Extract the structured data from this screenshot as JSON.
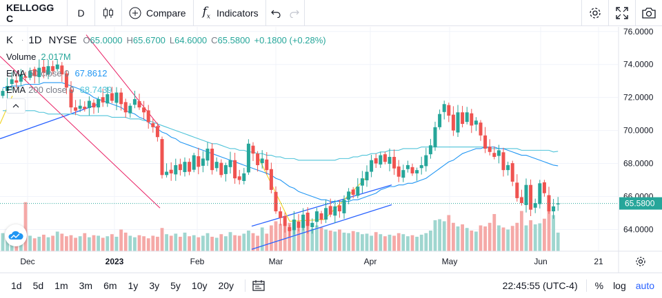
{
  "toolbar": {
    "symbol": "KELLOGG C",
    "interval": "D",
    "compare_label": "Compare",
    "indicators_label": "Indicators"
  },
  "legend": {
    "symbol": "K",
    "interval": "1D",
    "exchange": "NYSE",
    "open_label": "O",
    "open": "65.0000",
    "high_label": "H",
    "high": "65.6700",
    "low_label": "L",
    "low": "64.6000",
    "close_label": "C",
    "close": "65.5800",
    "change": "+0.1800 (+0.28%)",
    "volume_label": "Volume",
    "volume": "2.017M",
    "ema50_label": "EMA",
    "ema50_params": "50 close 0",
    "ema50_value": "67.8612",
    "ema200_label": "EMA",
    "ema200_params": "200 close 0",
    "ema200_value": "68.7439"
  },
  "colors": {
    "up": "#26a69a",
    "down": "#ef5350",
    "vol_up": "#9fd6cf",
    "vol_down": "#f5a9a7",
    "ema50": "#2196f3",
    "ema200": "#4fc3d9",
    "trend": "#2962ff",
    "channel": "#e91e63",
    "zigzag": "#f2d630"
  },
  "bottom": {
    "ranges": [
      "1d",
      "5d",
      "1m",
      "3m",
      "6m",
      "1y",
      "3y",
      "5y",
      "10y",
      "20y"
    ],
    "time": "22:45:55 (UTC-4)",
    "percent_label": "%",
    "log_label": "log",
    "auto_label": "auto"
  },
  "chart_data": {
    "type": "candlestick",
    "x_tick_labels": [
      "Dec",
      "2023",
      "Feb",
      "Mar",
      "Apr",
      "May",
      "Jun",
      "21"
    ],
    "y_tick_labels": [
      "76.0000",
      "74.0000",
      "72.0000",
      "70.0000",
      "68.0000",
      "66.0000",
      "64.0000"
    ],
    "ylim": [
      62.6,
      76.2
    ],
    "last_price_label": "65.5800",
    "last_price": 65.58,
    "closes": [
      72.4,
      72.7,
      73.1,
      72.9,
      73.4,
      73.2,
      73.6,
      73.3,
      73.8,
      73.5,
      73.9,
      73.6,
      74.0,
      73.4,
      72.6,
      71.4,
      71.2,
      71.5,
      71.3,
      71.8,
      71.4,
      71.9,
      71.7,
      72.2,
      71.8,
      72.3,
      71.6,
      71.1,
      71.5,
      71.9,
      71.4,
      71.1,
      70.5,
      70.2,
      69.6,
      67.3,
      67.5,
      67.4,
      67.9,
      67.6,
      68.1,
      67.5,
      68.5,
      67.8,
      68.3,
      68.9,
      67.6,
      68.1,
      67.3,
      67.9,
      68.2,
      67.1,
      67.0,
      67.4,
      69.2,
      68.6,
      67.9,
      68.3,
      67.6,
      66.4,
      65.1,
      64.7,
      64.2,
      63.9,
      64.6,
      64.1,
      64.9,
      64.2,
      64.4,
      65.1,
      64.6,
      65.3,
      64.9,
      65.4,
      65.1,
      65.8,
      66.3,
      66.1,
      66.6,
      67.1,
      67.5,
      68.2,
      68.0,
      68.5,
      68.1,
      68.4,
      67.7,
      67.2,
      67.6,
      67.9,
      67.4,
      67.6,
      67.9,
      68.5,
      69.1,
      70.2,
      71.0,
      71.6,
      70.9,
      70.0,
      71.1,
      70.4,
      71.1,
      70.3,
      70.6,
      69.7,
      68.9,
      68.7,
      68.4,
      68.8,
      67.6,
      67.9,
      66.9,
      65.9,
      65.6,
      66.7,
      65.2,
      65.6,
      66.8,
      66.2,
      65.1,
      65.4,
      65.58
    ],
    "ema50": [
      72.6,
      72.6,
      72.7,
      72.7,
      72.7,
      72.8,
      72.8,
      72.8,
      72.8,
      72.9,
      72.9,
      72.9,
      72.9,
      72.9,
      72.8,
      72.7,
      72.6,
      72.5,
      72.3,
      72.2,
      72.0,
      71.9,
      71.8,
      71.7,
      71.6,
      71.5,
      71.4,
      71.2,
      71.1,
      71.0,
      70.8,
      70.7,
      70.5,
      70.3,
      70.1,
      69.9,
      69.8,
      69.6,
      69.5,
      69.3,
      69.2,
      69.1,
      69.0,
      68.9,
      68.8,
      68.7,
      68.6,
      68.5,
      68.4,
      68.3,
      68.2,
      68.1,
      68.0,
      67.9,
      67.8,
      67.7,
      67.6,
      67.5,
      67.4,
      67.3,
      67.1,
      67.0,
      66.8,
      66.6,
      66.5,
      66.3,
      66.2,
      66.1,
      66.0,
      65.9,
      65.8,
      65.8,
      65.7,
      65.7,
      65.7,
      65.7,
      65.7,
      65.8,
      65.8,
      65.9,
      66.0,
      66.1,
      66.2,
      66.4,
      66.5,
      66.6,
      66.6,
      66.7,
      66.7,
      66.8,
      66.8,
      66.9,
      67.0,
      67.1,
      67.3,
      67.5,
      67.7,
      67.9,
      68.1,
      68.2,
      68.4,
      68.6,
      68.7,
      68.8,
      68.9,
      68.9,
      69.0,
      69.0,
      69.0,
      68.9,
      68.9,
      68.8,
      68.7,
      68.6,
      68.5,
      68.5,
      68.4,
      68.3,
      68.2,
      68.1,
      68.0,
      67.9,
      67.86
    ],
    "ema200": [
      71.2,
      71.2,
      71.2,
      71.2,
      71.2,
      71.2,
      71.2,
      71.2,
      71.1,
      71.1,
      71.0,
      71.0,
      71.0,
      71.0,
      71.0,
      71.0,
      71.0,
      70.9,
      70.9,
      70.9,
      70.9,
      70.9,
      70.9,
      70.9,
      70.8,
      70.8,
      70.8,
      70.8,
      70.7,
      70.7,
      70.7,
      70.6,
      70.6,
      70.5,
      70.4,
      70.3,
      70.2,
      70.1,
      70.0,
      69.9,
      69.8,
      69.7,
      69.6,
      69.5,
      69.4,
      69.3,
      69.2,
      69.2,
      69.1,
      69.0,
      68.9,
      68.9,
      68.8,
      68.8,
      68.7,
      68.7,
      68.6,
      68.6,
      68.5,
      68.5,
      68.4,
      68.4,
      68.3,
      68.3,
      68.3,
      68.2,
      68.2,
      68.2,
      68.2,
      68.2,
      68.2,
      68.2,
      68.2,
      68.2,
      68.3,
      68.3,
      68.3,
      68.4,
      68.4,
      68.5,
      68.5,
      68.6,
      68.6,
      68.7,
      68.7,
      68.8,
      68.8,
      68.8,
      68.9,
      68.9,
      68.9,
      68.9,
      69.0,
      69.0,
      69.0,
      69.0,
      69.0,
      69.0,
      69.0,
      69.0,
      69.0,
      69.0,
      69.0,
      69.0,
      69.0,
      69.0,
      69.0,
      68.9,
      68.9,
      68.9,
      68.9,
      68.9,
      68.9,
      68.9,
      68.8,
      68.8,
      68.8,
      68.8,
      68.8,
      68.8,
      68.8,
      68.7,
      68.74
    ],
    "volume_relative": [
      0.35,
      0.28,
      0.31,
      0.26,
      0.33,
      0.95,
      0.3,
      0.25,
      0.28,
      0.32,
      0.27,
      0.3,
      0.38,
      0.34,
      0.29,
      0.31,
      0.26,
      0.29,
      0.35,
      0.27,
      0.31,
      0.3,
      0.26,
      0.29,
      0.33,
      0.28,
      0.42,
      0.36,
      0.3,
      0.27,
      0.31,
      0.29,
      0.25,
      0.3,
      0.28,
      0.45,
      0.33,
      0.3,
      0.34,
      0.28,
      0.36,
      0.29,
      0.31,
      0.27,
      0.3,
      0.35,
      0.28,
      0.26,
      0.33,
      0.29,
      0.37,
      0.31,
      0.3,
      0.34,
      0.4,
      0.35,
      0.3,
      0.46,
      0.34,
      0.5,
      0.58,
      0.53,
      0.48,
      0.55,
      0.5,
      0.45,
      0.52,
      0.48,
      0.44,
      0.5,
      0.46,
      0.42,
      0.4,
      0.38,
      0.42,
      0.36,
      0.35,
      0.39,
      0.37,
      0.33,
      0.34,
      0.3,
      0.37,
      0.33,
      0.29,
      0.32,
      0.3,
      0.35,
      0.33,
      0.29,
      0.31,
      0.28,
      0.32,
      0.35,
      0.4,
      0.6,
      0.62,
      0.58,
      0.7,
      0.55,
      0.48,
      0.52,
      0.45,
      0.4,
      0.38,
      0.5,
      0.48,
      0.55,
      0.72,
      0.5,
      0.46,
      0.42,
      0.49,
      0.55,
      0.78,
      0.5,
      0.6,
      0.52,
      0.54,
      0.63,
      0.9,
      0.7,
      0.36
    ]
  }
}
